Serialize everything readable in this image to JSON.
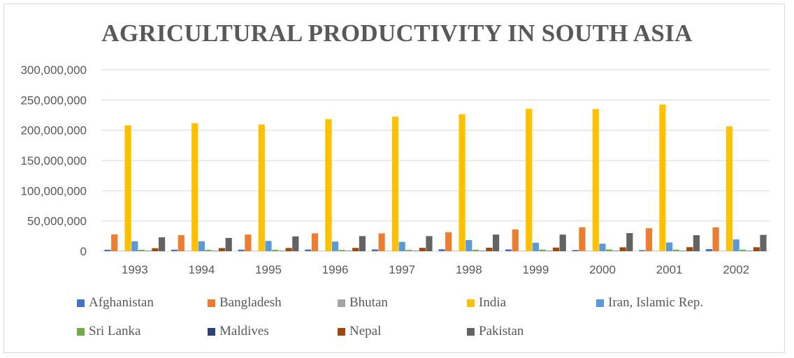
{
  "chart_data": {
    "type": "bar",
    "title": "AGRICULTURAL PRODUCTIVITY IN SOUTH ASIA",
    "xlabel": "",
    "ylabel": "",
    "ylim": [
      0,
      300000000
    ],
    "yticks": [
      "0",
      "50,000,000",
      "100,000,000",
      "150,000,000",
      "200,000,000",
      "250,000,000",
      "300,000,000"
    ],
    "ytick_values": [
      0,
      50000000,
      100000000,
      150000000,
      200000000,
      250000000,
      300000000
    ],
    "grid": true,
    "legend_position": "bottom",
    "categories": [
      "1993",
      "1994",
      "1995",
      "1996",
      "1997",
      "1998",
      "1999",
      "2000",
      "2001",
      "2002"
    ],
    "series": [
      {
        "name": "Afghanistan",
        "color": "#4472c4",
        "values": [
          2500000,
          2600000,
          2700000,
          2800000,
          3000000,
          3200000,
          3000000,
          2000000,
          1800000,
          3500000
        ]
      },
      {
        "name": "Bangladesh",
        "color": "#ed7d31",
        "values": [
          28000000,
          26500000,
          27500000,
          29500000,
          29500000,
          31500000,
          36000000,
          39500000,
          38000000,
          39500000
        ]
      },
      {
        "name": "Bhutan",
        "color": "#a5a5a5",
        "values": [
          150000,
          150000,
          150000,
          150000,
          150000,
          150000,
          150000,
          150000,
          150000,
          150000
        ]
      },
      {
        "name": "India",
        "color": "#ffc000",
        "values": [
          208000000,
          211500000,
          209500000,
          218500000,
          222500000,
          226500000,
          235500000,
          235000000,
          242500000,
          206500000
        ]
      },
      {
        "name": "Iran, Islamic Rep.",
        "color": "#5b9bd5",
        "values": [
          16500000,
          16500000,
          17000000,
          16000000,
          15500000,
          18500000,
          14000000,
          12500000,
          14500000,
          19500000
        ]
      },
      {
        "name": "Sri Lanka",
        "color": "#70ad47",
        "values": [
          2300000,
          2300000,
          2400000,
          2100000,
          2100000,
          2400000,
          2700000,
          2900000,
          2600000,
          2500000
        ]
      },
      {
        "name": "Maldives",
        "color": "#264478",
        "values": [
          10000,
          10000,
          10000,
          10000,
          10000,
          10000,
          10000,
          10000,
          10000,
          10000
        ]
      },
      {
        "name": "Nepal",
        "color": "#9e480e",
        "values": [
          5000000,
          5200000,
          5400000,
          5500000,
          5600000,
          5800000,
          6000000,
          6500000,
          6700000,
          6600000
        ]
      },
      {
        "name": "Pakistan",
        "color": "#636363",
        "values": [
          23000000,
          22000000,
          24500000,
          25000000,
          25000000,
          27500000,
          27500000,
          30000000,
          26500000,
          27000000
        ]
      }
    ]
  }
}
